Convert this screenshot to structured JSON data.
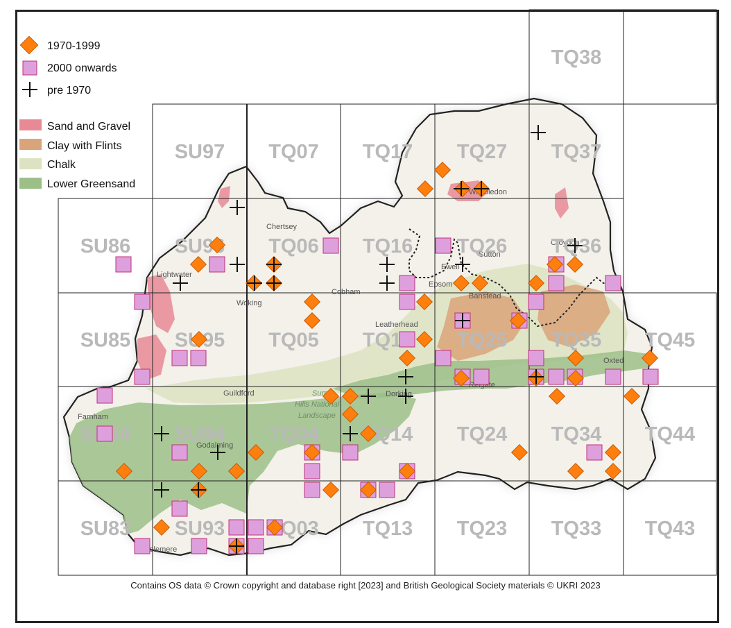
{
  "legend": {
    "records": [
      {
        "label": "1970-1999",
        "symbol": "diamond",
        "color": "#ff7f0e"
      },
      {
        "label": "2000 onwards",
        "symbol": "square",
        "color": "#dda0dd"
      },
      {
        "label": "pre 1970",
        "symbol": "cross",
        "color": "#111111"
      }
    ],
    "geology": [
      {
        "label": "Sand and Gravel",
        "color": "#e88a96"
      },
      {
        "label": "Clay with Flints",
        "color": "#d9a47a"
      },
      {
        "label": "Chalk",
        "color": "#dde3c2"
      },
      {
        "label": "Lower Greensand",
        "color": "#9cbf88"
      }
    ]
  },
  "grid_squares": [
    {
      "label": "TQ38"
    },
    {
      "label": "SU97"
    },
    {
      "label": "TQ07"
    },
    {
      "label": "TQ17"
    },
    {
      "label": "TQ27"
    },
    {
      "label": "TQ37"
    },
    {
      "label": "SU86"
    },
    {
      "label": "SU96"
    },
    {
      "label": "TQ06"
    },
    {
      "label": "TQ16"
    },
    {
      "label": "TQ26"
    },
    {
      "label": "TQ36"
    },
    {
      "label": "SU85"
    },
    {
      "label": "SU95"
    },
    {
      "label": "TQ05"
    },
    {
      "label": "TQ15"
    },
    {
      "label": "TQ25"
    },
    {
      "label": "TQ35"
    },
    {
      "label": "TQ45"
    },
    {
      "label": "SU84"
    },
    {
      "label": "SU94"
    },
    {
      "label": "TQ04"
    },
    {
      "label": "TQ14"
    },
    {
      "label": "TQ24"
    },
    {
      "label": "TQ34"
    },
    {
      "label": "TQ44"
    },
    {
      "label": "SU83"
    },
    {
      "label": "SU93"
    },
    {
      "label": "TQ03"
    },
    {
      "label": "TQ13"
    },
    {
      "label": "TQ23"
    },
    {
      "label": "TQ33"
    },
    {
      "label": "TQ43"
    }
  ],
  "places": [
    {
      "label": "Lightwater"
    },
    {
      "label": "Woking"
    },
    {
      "label": "Chertsey"
    },
    {
      "label": "Cobham"
    },
    {
      "label": "Leatherhead"
    },
    {
      "label": "Epsom"
    },
    {
      "label": "Ewell"
    },
    {
      "label": "Sutton"
    },
    {
      "label": "Croydon"
    },
    {
      "label": "Banstead"
    },
    {
      "label": "Oxted"
    },
    {
      "label": "Guildford"
    },
    {
      "label": "Farnham"
    },
    {
      "label": "Godalming"
    },
    {
      "label": "Dorking"
    },
    {
      "label": "Reigate"
    },
    {
      "label": "Haslemere"
    },
    {
      "label": "Wimbledon"
    }
  ],
  "park": {
    "line1": "Surrey",
    "line2": "Hills National",
    "line3": "Landscape"
  },
  "credit": "Contains OS data  © Crown copyright and database right [2023] and British Geological Society materials © UKRI 2023"
}
